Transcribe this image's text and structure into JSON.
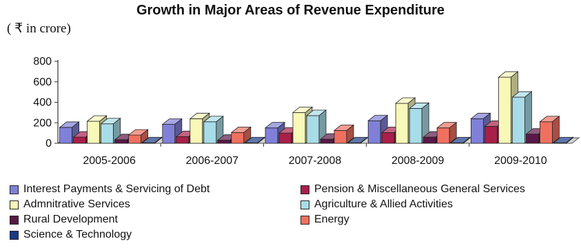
{
  "chart_data": {
    "type": "bar",
    "title": "Growth in Major Areas of Revenue Expenditure",
    "unit_label": "( ₹ in crore)",
    "categories": [
      "2005-2006",
      "2006-2007",
      "2007-2008",
      "2008-2009",
      "2009-2010"
    ],
    "y_ticks": [
      "0",
      "200",
      "400",
      "600",
      "800"
    ],
    "ylim": [
      0,
      800
    ],
    "grid": false,
    "legend_position": "bottom",
    "series": [
      {
        "name": "Interest Payments & Servicing of Debt",
        "color": "#8080d8",
        "values": [
          155,
          185,
          150,
          220,
          240
        ]
      },
      {
        "name": "Pension & Miscellaneous General Services",
        "color": "#a8204a",
        "values": [
          60,
          65,
          100,
          105,
          165
        ]
      },
      {
        "name": "Admnitrative Services",
        "color": "#f8f8b8",
        "values": [
          215,
          240,
          300,
          390,
          645
        ]
      },
      {
        "name": "Agriculture & Allied Activities",
        "color": "#a8dce8",
        "values": [
          190,
          210,
          270,
          340,
          450
        ]
      },
      {
        "name": "Rural Development",
        "color": "#5a1848",
        "values": [
          35,
          30,
          40,
          60,
          90
        ]
      },
      {
        "name": "Energy",
        "color": "#f07060",
        "values": [
          80,
          105,
          125,
          150,
          210
        ]
      },
      {
        "name": "Science & Technology",
        "color": "#1a3a88",
        "values": [
          5,
          5,
          5,
          5,
          5
        ]
      }
    ]
  }
}
